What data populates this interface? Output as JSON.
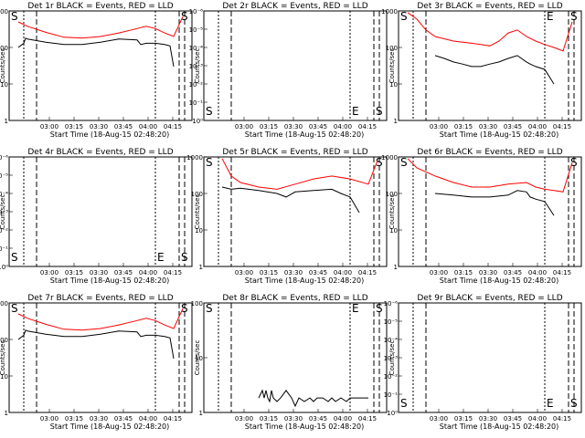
{
  "chart_data": [
    {
      "type": "line",
      "title": "Det 1r BLACK = Events, RED = LLD",
      "xlabel": "Start Time (18-Aug-15 02:48:20)",
      "ylabel": "Counts/sec",
      "yscale": "log",
      "ylim": [
        1,
        1000
      ],
      "yticks": [
        "1",
        "10",
        "100",
        "1000"
      ],
      "xticks": [
        "03:00",
        "03:15",
        "03:30",
        "03:45",
        "04:00",
        "04:15"
      ],
      "markers": [
        {
          "label": "S",
          "pos": "left"
        },
        {
          "label": "S",
          "pos": "right"
        }
      ],
      "series": [
        {
          "color": "#ff0000",
          "x": [
            0.05,
            0.1,
            0.2,
            0.3,
            0.4,
            0.5,
            0.6,
            0.7,
            0.75,
            0.8,
            0.85,
            0.9,
            0.95
          ],
          "y": [
            500,
            380,
            260,
            190,
            180,
            200,
            250,
            330,
            380,
            330,
            250,
            200,
            700
          ]
        },
        {
          "color": "#000000",
          "x": [
            0.05,
            0.08,
            0.09,
            0.1,
            0.2,
            0.3,
            0.4,
            0.5,
            0.6,
            0.7,
            0.72,
            0.75,
            0.8,
            0.85,
            0.88,
            0.9
          ],
          "y": [
            100,
            130,
            180,
            170,
            140,
            120,
            120,
            140,
            170,
            160,
            120,
            130,
            130,
            120,
            110,
            30
          ]
        }
      ]
    },
    {
      "type": "line",
      "title": "Det 2r BLACK = Events, RED = LLD",
      "xlabel": "Start Time (18-Aug-15 02:48:20)",
      "ylabel": "Counts/sec",
      "yscale": "log",
      "ylim": [
        1e-06,
        1
      ],
      "yticks": [
        "10⁰",
        "10⁻¹",
        "10⁻²",
        "10⁻³",
        "10⁻⁴",
        "10⁻⁵",
        "10⁻⁶"
      ],
      "xticks": [
        "03:00",
        "03:15",
        "03:30",
        "03:45",
        "04:00",
        "04:15"
      ],
      "markers": [
        {
          "label": "S",
          "pos": "left"
        },
        {
          "label": "E",
          "pos": "mid"
        },
        {
          "label": "S",
          "pos": "right"
        }
      ],
      "series": []
    },
    {
      "type": "line",
      "title": "Det 3r BLACK = Events, RED = LLD",
      "xlabel": "Start Time (18-Aug-15 02:48:20)",
      "ylabel": "Counts/sec",
      "yscale": "log",
      "ylim": [
        1,
        1000
      ],
      "yticks": [
        "1",
        "10",
        "100",
        "1000"
      ],
      "xticks": [
        "03:00",
        "03:15",
        "03:30",
        "03:45",
        "04:00",
        "04:15"
      ],
      "markers": [
        {
          "label": "S",
          "pos": "left"
        },
        {
          "label": "E",
          "pos": "mid"
        },
        {
          "label": "S",
          "pos": "right"
        }
      ],
      "series": [
        {
          "color": "#ff0000",
          "x": [
            0.05,
            0.1,
            0.15,
            0.2,
            0.3,
            0.4,
            0.45,
            0.5,
            0.55,
            0.6,
            0.65,
            0.7,
            0.75,
            0.8,
            0.85,
            0.9,
            0.95
          ],
          "y": [
            900,
            600,
            300,
            200,
            150,
            130,
            120,
            110,
            150,
            250,
            300,
            200,
            150,
            120,
            100,
            80,
            500
          ]
        },
        {
          "color": "#000000",
          "x": [
            0.2,
            0.25,
            0.3,
            0.35,
            0.4,
            0.45,
            0.5,
            0.55,
            0.6,
            0.65,
            0.7,
            0.72,
            0.75,
            0.8,
            0.85
          ],
          "y": [
            60,
            50,
            40,
            35,
            30,
            30,
            35,
            40,
            50,
            60,
            40,
            35,
            30,
            25,
            10
          ]
        }
      ]
    },
    {
      "type": "line",
      "title": "Det 4r BLACK = Events, RED = LLD",
      "xlabel": "Start Time (18-Aug-15 02:48:20)",
      "ylabel": "Counts/sec",
      "yscale": "log",
      "ylim": [
        1e-06,
        1
      ],
      "yticks": [
        "10⁰",
        "10⁻¹",
        "10⁻²",
        "10⁻³",
        "10⁻⁴",
        "10⁻⁵",
        "10⁻⁶"
      ],
      "xticks": [
        "03:00",
        "03:15",
        "03:30",
        "03:45",
        "04:00",
        "04:15"
      ],
      "markers": [
        {
          "label": "S",
          "pos": "left"
        },
        {
          "label": "E",
          "pos": "mid"
        },
        {
          "label": "S",
          "pos": "right"
        }
      ],
      "series": []
    },
    {
      "type": "line",
      "title": "Det 5r BLACK = Events, RED = LLD",
      "xlabel": "Start Time (18-Aug-15 02:48:20)",
      "ylabel": "Counts/sec",
      "yscale": "log",
      "ylim": [
        1,
        1000
      ],
      "yticks": [
        "1",
        "10",
        "100",
        "1000"
      ],
      "xticks": [
        "03:00",
        "03:15",
        "03:30",
        "03:45",
        "04:00",
        "04:15"
      ],
      "markers": [
        {
          "label": "S",
          "pos": "left"
        },
        {
          "label": "S",
          "pos": "right"
        }
      ],
      "series": [
        {
          "color": "#ff0000",
          "x": [
            0.1,
            0.15,
            0.2,
            0.3,
            0.4,
            0.5,
            0.6,
            0.7,
            0.8,
            0.9,
            0.95
          ],
          "y": [
            900,
            300,
            200,
            150,
            130,
            180,
            250,
            300,
            250,
            180,
            800
          ]
        },
        {
          "color": "#000000",
          "x": [
            0.1,
            0.15,
            0.2,
            0.3,
            0.4,
            0.45,
            0.5,
            0.6,
            0.7,
            0.75,
            0.8,
            0.85
          ],
          "y": [
            150,
            130,
            140,
            120,
            100,
            80,
            110,
            120,
            130,
            100,
            80,
            30
          ]
        }
      ]
    },
    {
      "type": "line",
      "title": "Det 6r BLACK = Events, RED = LLD",
      "xlabel": "Start Time (18-Aug-15 02:48:20)",
      "ylabel": "Counts/sec",
      "yscale": "log",
      "ylim": [
        1,
        1000
      ],
      "yticks": [
        "1",
        "10",
        "100",
        "1000"
      ],
      "xticks": [
        "03:00",
        "03:15",
        "03:30",
        "03:45",
        "04:00",
        "04:15"
      ],
      "markers": [
        {
          "label": "S",
          "pos": "left"
        },
        {
          "label": "S",
          "pos": "right"
        }
      ],
      "series": [
        {
          "color": "#ff0000",
          "x": [
            0.05,
            0.1,
            0.2,
            0.3,
            0.4,
            0.5,
            0.6,
            0.7,
            0.75,
            0.8,
            0.85,
            0.9,
            0.95
          ],
          "y": [
            900,
            500,
            300,
            200,
            150,
            150,
            180,
            200,
            150,
            130,
            120,
            110,
            700
          ]
        },
        {
          "color": "#000000",
          "x": [
            0.2,
            0.3,
            0.4,
            0.5,
            0.6,
            0.65,
            0.7,
            0.72,
            0.75,
            0.8,
            0.85
          ],
          "y": [
            100,
            90,
            80,
            80,
            90,
            120,
            110,
            80,
            70,
            60,
            25
          ]
        }
      ]
    },
    {
      "type": "line",
      "title": "Det 7r BLACK = Events, RED = LLD",
      "xlabel": "Start Time (18-Aug-15 02:48:20)",
      "ylabel": "Counts/sec",
      "yscale": "log",
      "ylim": [
        1,
        1000
      ],
      "yticks": [
        "1",
        "10",
        "100",
        "1000"
      ],
      "xticks": [
        "03:00",
        "03:15",
        "03:30",
        "03:45",
        "04:00",
        "04:15"
      ],
      "markers": [
        {
          "label": "S",
          "pos": "left"
        },
        {
          "label": "S",
          "pos": "right"
        }
      ],
      "series": [
        {
          "color": "#ff0000",
          "x": [
            0.05,
            0.1,
            0.2,
            0.3,
            0.4,
            0.5,
            0.6,
            0.7,
            0.75,
            0.8,
            0.85,
            0.9,
            0.95
          ],
          "y": [
            500,
            380,
            260,
            190,
            180,
            200,
            250,
            330,
            380,
            330,
            250,
            200,
            700
          ]
        },
        {
          "color": "#000000",
          "x": [
            0.05,
            0.08,
            0.09,
            0.1,
            0.2,
            0.3,
            0.4,
            0.5,
            0.6,
            0.7,
            0.72,
            0.75,
            0.8,
            0.85,
            0.88,
            0.9
          ],
          "y": [
            100,
            130,
            180,
            170,
            140,
            120,
            120,
            140,
            170,
            160,
            120,
            130,
            130,
            120,
            110,
            30
          ]
        }
      ]
    },
    {
      "type": "line",
      "title": "Det 8r BLACK = Events, RED = LLD",
      "xlabel": "Start Time (18-Aug-15 02:48:20)",
      "ylabel": "Counts/sec",
      "yscale": "log",
      "ylim": [
        1,
        1000
      ],
      "yticks": [
        "1",
        "10",
        "100"
      ],
      "xticks": [
        "03:00",
        "03:15",
        "03:30",
        "03:45",
        "04:00",
        "04:15"
      ],
      "markers": [
        {
          "label": "S",
          "pos": "left"
        },
        {
          "label": "E",
          "pos": "mid"
        },
        {
          "label": "S",
          "pos": "right"
        }
      ],
      "series": [
        {
          "color": "#000000",
          "x": [
            0.3,
            0.32,
            0.33,
            0.34,
            0.35,
            0.36,
            0.37,
            0.38,
            0.4,
            0.42,
            0.45,
            0.48,
            0.5,
            0.52,
            0.55,
            0.58,
            0.6,
            0.62,
            0.65,
            0.68,
            0.7,
            0.72,
            0.75,
            0.78,
            0.8,
            0.82,
            0.85,
            0.9
          ],
          "y": [
            2.5,
            4,
            2.5,
            4,
            2.5,
            2,
            4,
            2.5,
            2,
            2.5,
            4,
            2.5,
            1.5,
            2.5,
            2,
            2.5,
            2,
            2.5,
            2.5,
            2,
            2.5,
            2,
            2.5,
            2,
            2.5,
            2.5,
            2.5,
            2.5
          ]
        }
      ]
    },
    {
      "type": "line",
      "title": "Det 9r BLACK = Events, RED = LLD",
      "xlabel": "Start Time (18-Aug-15 02:48:20)",
      "ylabel": "Counts/sec",
      "yscale": "log",
      "ylim": [
        1e-06,
        1
      ],
      "yticks": [
        "10⁰",
        "10⁻¹",
        "10⁻²",
        "10⁻³",
        "10⁻⁴",
        "10⁻⁵",
        "10⁻⁶"
      ],
      "xticks": [
        "03:00",
        "03:15",
        "03:30",
        "03:45",
        "04:00",
        "04:15"
      ],
      "markers": [
        {
          "label": "S",
          "pos": "left"
        },
        {
          "label": "E",
          "pos": "mid"
        },
        {
          "label": "S",
          "pos": "right"
        }
      ],
      "series": []
    }
  ]
}
